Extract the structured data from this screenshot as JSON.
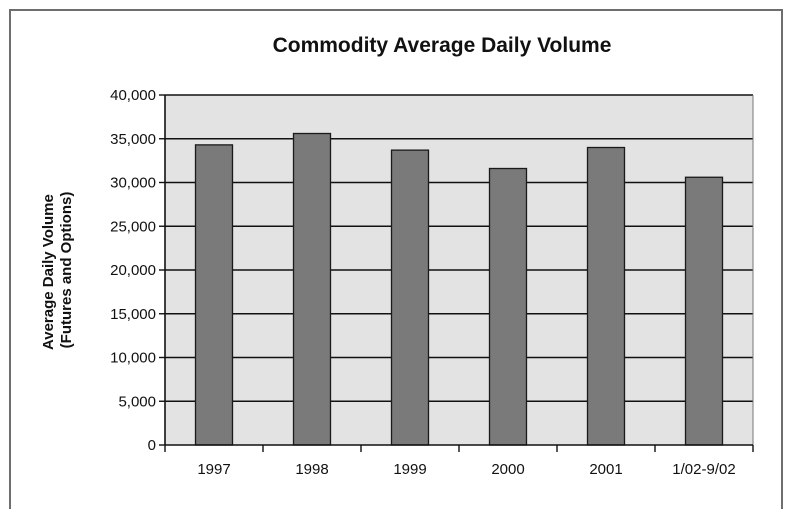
{
  "chart_data": {
    "type": "bar",
    "title": "Commodity Average Daily Volume",
    "xlabel": "",
    "ylabel": [
      "Average Daily Volume",
      "(Futures and Options)"
    ],
    "categories": [
      "1997",
      "1998",
      "1999",
      "2000",
      "2001",
      "1/02-9/02"
    ],
    "values": [
      34300,
      35600,
      33700,
      31600,
      34000,
      30600
    ],
    "ylim": [
      0,
      40000
    ],
    "yticks": [
      0,
      5000,
      10000,
      15000,
      20000,
      25000,
      30000,
      35000,
      40000
    ],
    "ytick_labels": [
      "0",
      "5,000",
      "10,000",
      "15,000",
      "20,000",
      "25,000",
      "30,000",
      "35,000",
      "40,000"
    ],
    "grid": true,
    "colors": {
      "bar": "#7a7a7a",
      "bar_edge": "#1a1a1a",
      "plot_background": "#e3e3e3",
      "gridline": "#111111"
    }
  }
}
